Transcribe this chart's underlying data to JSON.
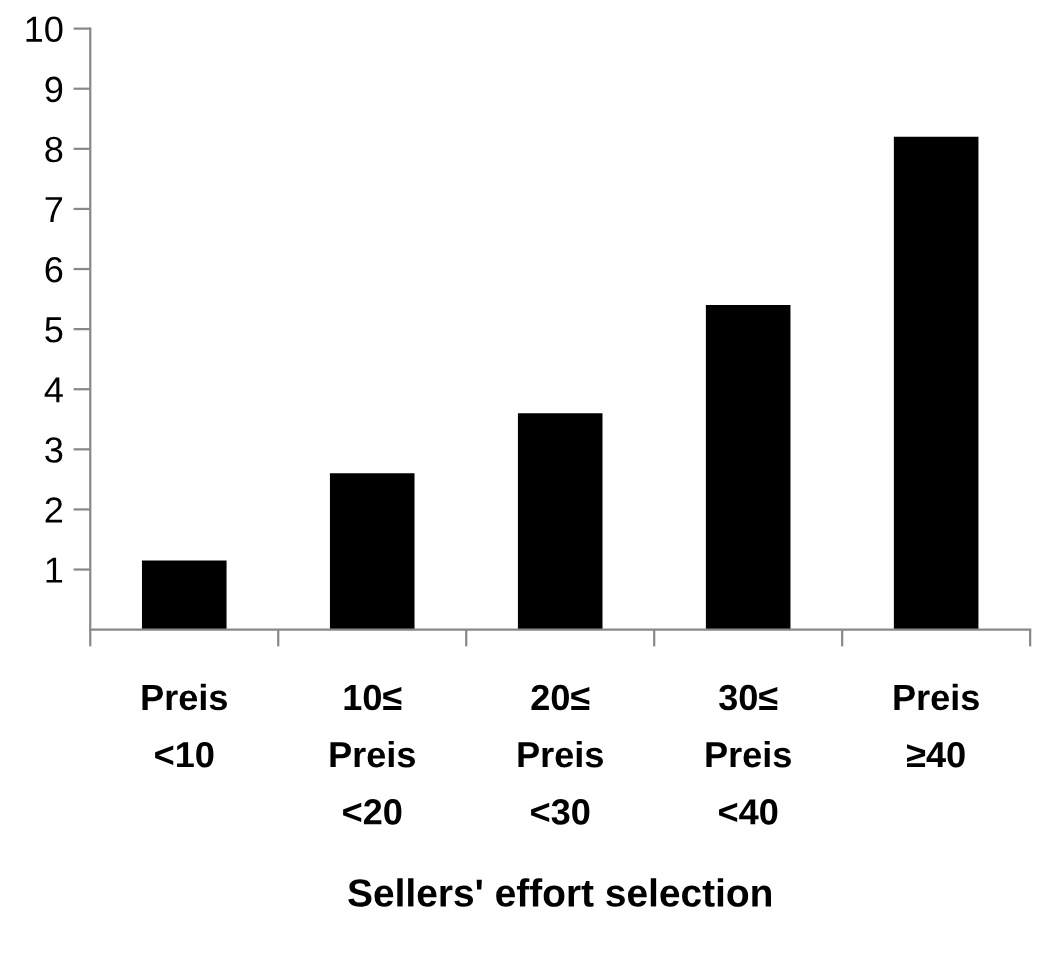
{
  "chart_data": {
    "type": "bar",
    "xlabel": "Sellers' effort selection",
    "categories": [
      "Preis\n<10",
      "10≤\nPreis\n<20",
      "20≤\nPreis\n<30",
      "30≤\nPreis\n<40",
      "Preis\n≥40"
    ],
    "values": [
      1.15,
      2.6,
      3.6,
      5.4,
      8.2
    ],
    "color": "#000000",
    "ylim": [
      0,
      10
    ],
    "yticks": [
      1,
      2,
      3,
      4,
      5,
      6,
      7,
      8,
      9,
      10
    ],
    "grid": false,
    "legend": false
  }
}
